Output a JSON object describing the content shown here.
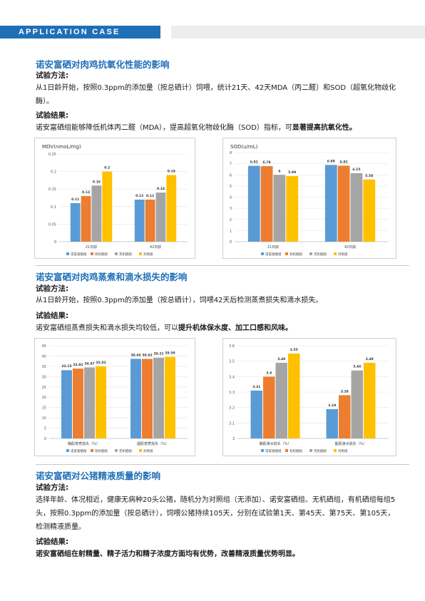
{
  "header": {
    "banner": "APPLICATION CASE"
  },
  "sections": [
    {
      "title": "诺安富硒对肉鸡抗氧化性能的影响",
      "method_label": "试验方法:",
      "method_text": "从1日龄开始，按照0.3ppm的添加量（按总硒计）饲喂，统计21天、42天MDA（丙二醛）和SOD（超氧化物歧化酶）。",
      "result_label": "试验结果:",
      "result_text": "诺安富硒组能够降低机体丙二醛（MDA），提高超氧化物歧化酶（SOD）指标，可",
      "result_bold": "显著提高抗氧化性。"
    },
    {
      "title": "诺安富硒对肉鸡蒸煮和滴水损失的影响",
      "method_label": "试验方法:",
      "method_text": "从1日龄开始，按照0.3ppm的添加量（按总硒计），饲喂42天后检测蒸煮损失和滴水损失。",
      "result_label": "试验结果:",
      "result_text": "诺安富硒组蒸煮损失和滴水损失均较低，可以",
      "result_bold": "提升机体保水度、加工口感和风味。"
    },
    {
      "title": "诺安富硒对公猪精液质量的影响",
      "method_label": "试验方法:",
      "method_text": "选择年龄、体况相近，健康无病种20头公猪，随机分为对照组（无添加）、诺安富硒组、无机硒组，有机硒组每组5头，按照0.3ppm的添加量（按总硒计），饲喂公猪持续105天，分别在试验第1天、第45天、第75天、第105天，检测精液质量。",
      "result_label": "试验结果:",
      "result_bold": "诺安富硒组在射精量、精子活力和精子浓度方面均有优势，改善精液质量优势明显。"
    }
  ],
  "colors": {
    "series": [
      "#5b9bd5",
      "#ed7d31",
      "#a5a5a5",
      "#ffc000"
    ]
  },
  "chart_data": [
    {
      "type": "bar",
      "title": "MDV(nmoL/mg)",
      "categories": [
        "21日龄",
        "42日龄"
      ],
      "series": [
        {
          "name": "诺安富硒组",
          "values": [
            0.11,
            0.12
          ]
        },
        {
          "name": "有机硒组",
          "values": [
            0.13,
            0.12
          ]
        },
        {
          "name": "无机硒组",
          "values": [
            0.16,
            0.14
          ]
        },
        {
          "name": "对照组",
          "values": [
            0.2,
            0.19
          ]
        }
      ],
      "ylim": [
        0,
        0.25
      ],
      "yticks": [
        0,
        0.05,
        0.1,
        0.15,
        0.2,
        0.25
      ],
      "ytick_labels": [
        "0",
        "0.05",
        "0.1",
        "0.15",
        "0.2",
        "0.25"
      ],
      "value_labels": [
        [
          "0.11",
          "0.12"
        ],
        [
          "0.13",
          "0.12"
        ],
        [
          "0.16",
          "0.14"
        ],
        [
          "0.2",
          "0.19"
        ]
      ],
      "grid": true,
      "legend": "bottom"
    },
    {
      "type": "bar",
      "title": "SOD(u/mL)",
      "categories": [
        "21日龄",
        "42日龄"
      ],
      "series": [
        {
          "name": "诺安富硒组",
          "values": [
            6.81,
            6.89
          ]
        },
        {
          "name": "有机硒组",
          "values": [
            6.78,
            6.82
          ]
        },
        {
          "name": "无机硒组",
          "values": [
            6,
            6.15
          ]
        },
        {
          "name": "对照组",
          "values": [
            5.89,
            5.58
          ]
        }
      ],
      "ylim": [
        0,
        8
      ],
      "yticks": [
        0,
        1,
        2,
        3,
        4,
        5,
        6,
        7,
        8
      ],
      "ytick_labels": [
        "0",
        "1",
        "2",
        "3",
        "4",
        "5",
        "6",
        "7",
        "8"
      ],
      "value_labels": [
        [
          "6.81",
          "6.89"
        ],
        [
          "6.78",
          "6.82"
        ],
        [
          "6",
          "6.15"
        ],
        [
          "5.89",
          "5.58"
        ]
      ],
      "grid": true,
      "legend": "bottom"
    },
    {
      "type": "bar",
      "categories": [
        "胸肌蒸煮损失（%）",
        "腿肌蒸煮损失（%）"
      ],
      "series": [
        {
          "name": "诺安富硒组",
          "values": [
            33.15,
            38.66
          ]
        },
        {
          "name": "有机硒组",
          "values": [
            33.92,
            38.62
          ]
        },
        {
          "name": "无机硒组",
          "values": [
            34.47,
            39.21
          ]
        },
        {
          "name": "对照组",
          "values": [
            35.02,
            39.59
          ]
        }
      ],
      "ylim": [
        0,
        45
      ],
      "yticks": [
        0,
        5,
        10,
        15,
        20,
        25,
        30,
        35,
        40,
        45
      ],
      "ytick_labels": [
        "0",
        "5",
        "10",
        "15",
        "20",
        "25",
        "30",
        "35",
        "40",
        "45"
      ],
      "value_labels": [
        [
          "33.15",
          "38.66"
        ],
        [
          "33.92",
          "38.62"
        ],
        [
          "34.47",
          "39.21"
        ],
        [
          "35.02",
          "39.59"
        ]
      ],
      "grid": true,
      "legend": "bottom"
    },
    {
      "type": "bar",
      "categories": [
        "胸肌滴水损失（%）",
        "腿肌滴水损失（%）"
      ],
      "series": [
        {
          "name": "诺安富硒组",
          "values": [
            3.31,
            3.19
          ]
        },
        {
          "name": "有机硒组",
          "values": [
            3.4,
            3.28
          ]
        },
        {
          "name": "无机硒组",
          "values": [
            3.49,
            3.44
          ]
        },
        {
          "name": "对照组",
          "values": [
            3.55,
            3.49
          ]
        }
      ],
      "ylim": [
        3,
        3.6
      ],
      "yticks": [
        3,
        3.1,
        3.2,
        3.3,
        3.4,
        3.5,
        3.6
      ],
      "ytick_labels": [
        "3",
        "3.1",
        "3.2",
        "3.3",
        "3.4",
        "3.5",
        "3.6"
      ],
      "value_labels": [
        [
          "3.31",
          "3.19"
        ],
        [
          "3.4",
          "3.28"
        ],
        [
          "3.49",
          "3.44"
        ],
        [
          "3.55",
          "3.49"
        ]
      ],
      "grid": true,
      "legend": "bottom"
    }
  ]
}
